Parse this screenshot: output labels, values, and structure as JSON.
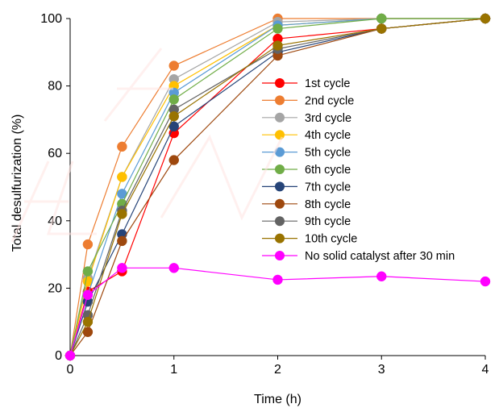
{
  "chart_data": {
    "type": "line",
    "xlabel": "Time (h)",
    "ylabel": "Total desulfurization (%)",
    "xlim": [
      0,
      4
    ],
    "ylim": [
      0,
      100
    ],
    "xticks": [
      "0",
      "1",
      "2",
      "3",
      "4"
    ],
    "yticks": [
      "0",
      "20",
      "40",
      "60",
      "80",
      "100"
    ],
    "grid": false,
    "legend_position": "center-right",
    "x": [
      0,
      0.17,
      0.5,
      1,
      2,
      3,
      4
    ],
    "series": [
      {
        "name": "1st cycle",
        "color": "#ff0000",
        "values": [
          0,
          19,
          25,
          66,
          94,
          97,
          100
        ]
      },
      {
        "name": "2nd cycle",
        "color": "#ed7d31",
        "values": [
          0,
          33,
          62,
          86,
          100,
          100,
          100
        ]
      },
      {
        "name": "3rd cycle",
        "color": "#a5a5a5",
        "values": [
          0,
          23,
          53,
          82,
          99,
          100,
          100
        ]
      },
      {
        "name": "4th cycle",
        "color": "#ffc000",
        "values": [
          0,
          22,
          53,
          80,
          98,
          100,
          100
        ]
      },
      {
        "name": "5th cycle",
        "color": "#5b9bd5",
        "values": [
          0,
          18,
          48,
          78,
          98,
          100,
          100
        ]
      },
      {
        "name": "6th cycle",
        "color": "#70ad47",
        "values": [
          0,
          25,
          45,
          76,
          97,
          100,
          100
        ]
      },
      {
        "name": "7th cycle",
        "color": "#264478",
        "values": [
          0,
          16,
          36,
          68,
          90,
          97,
          100
        ]
      },
      {
        "name": "8th cycle",
        "color": "#9e480e",
        "values": [
          0,
          7,
          34,
          58,
          89,
          97,
          100
        ]
      },
      {
        "name": "9th cycle",
        "color": "#636363",
        "values": [
          0,
          12,
          43,
          73,
          91,
          97,
          100
        ]
      },
      {
        "name": "10th cycle",
        "color": "#997300",
        "values": [
          0,
          10,
          42,
          71,
          92,
          97,
          100
        ]
      },
      {
        "name": "No solid catalyst after 30 min",
        "color": "#ff00ff",
        "values": [
          0,
          18,
          26,
          26,
          22.5,
          23.5,
          22
        ]
      }
    ]
  }
}
